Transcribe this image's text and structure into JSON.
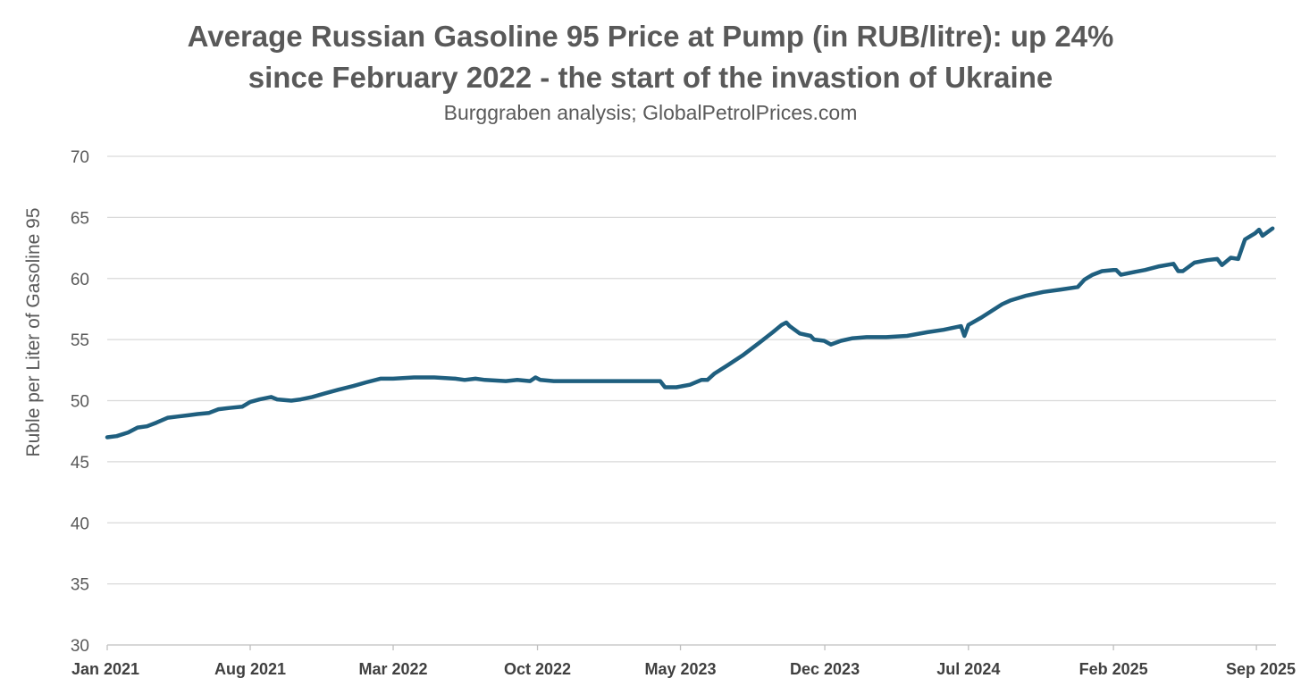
{
  "chart_data": {
    "type": "line",
    "title_line1": "Average Russian Gasoline 95 Price at Pump (in RUB/litre): up 24%",
    "title_line2": "since February 2022 - the start of the invastion of Ukraine",
    "subtitle": "Burggraben analysis; GlobalPetrolPrices.com",
    "xlabel": "",
    "ylabel": "Ruble per Liter of Gasoline 95",
    "ylim": [
      30,
      70
    ],
    "yticks": [
      30,
      35,
      40,
      45,
      50,
      55,
      60,
      65,
      70
    ],
    "xlim": [
      "2021-01-01",
      "2025-09-30"
    ],
    "xticks": [
      {
        "date": "2021-01-01",
        "label": "Jan 2021"
      },
      {
        "date": "2021-08-01",
        "label": "Aug 2021"
      },
      {
        "date": "2022-03-01",
        "label": "Mar 2022"
      },
      {
        "date": "2022-10-01",
        "label": "Oct 2022"
      },
      {
        "date": "2023-05-01",
        "label": "May 2023"
      },
      {
        "date": "2023-12-01",
        "label": "Dec 2023"
      },
      {
        "date": "2024-07-01",
        "label": "Jul 2024"
      },
      {
        "date": "2025-02-01",
        "label": "Feb 2025"
      },
      {
        "date": "2025-09-01",
        "label": "Sep 2025"
      }
    ],
    "grid": true,
    "line_color": "#1F5F7F",
    "series": [
      {
        "name": "",
        "points": [
          [
            "2021-01-01",
            47.0
          ],
          [
            "2021-01-15",
            47.1
          ],
          [
            "2021-02-01",
            47.4
          ],
          [
            "2021-02-15",
            47.8
          ],
          [
            "2021-03-01",
            47.9
          ],
          [
            "2021-03-15",
            48.2
          ],
          [
            "2021-04-01",
            48.6
          ],
          [
            "2021-04-15",
            48.7
          ],
          [
            "2021-05-01",
            48.8
          ],
          [
            "2021-05-15",
            48.9
          ],
          [
            "2021-06-01",
            49.0
          ],
          [
            "2021-06-15",
            49.3
          ],
          [
            "2021-07-01",
            49.4
          ],
          [
            "2021-07-20",
            49.5
          ],
          [
            "2021-08-01",
            49.9
          ],
          [
            "2021-08-15",
            50.1
          ],
          [
            "2021-09-01",
            50.3
          ],
          [
            "2021-09-10",
            50.1
          ],
          [
            "2021-10-01",
            50.0
          ],
          [
            "2021-10-15",
            50.1
          ],
          [
            "2021-11-01",
            50.3
          ],
          [
            "2021-11-20",
            50.6
          ],
          [
            "2021-12-10",
            50.9
          ],
          [
            "2022-01-01",
            51.2
          ],
          [
            "2022-01-20",
            51.5
          ],
          [
            "2022-02-10",
            51.8
          ],
          [
            "2022-03-01",
            51.8
          ],
          [
            "2022-04-01",
            51.9
          ],
          [
            "2022-05-01",
            51.9
          ],
          [
            "2022-06-01",
            51.8
          ],
          [
            "2022-06-15",
            51.7
          ],
          [
            "2022-07-01",
            51.8
          ],
          [
            "2022-07-15",
            51.7
          ],
          [
            "2022-08-15",
            51.6
          ],
          [
            "2022-09-01",
            51.7
          ],
          [
            "2022-09-20",
            51.6
          ],
          [
            "2022-09-28",
            51.9
          ],
          [
            "2022-10-05",
            51.7
          ],
          [
            "2022-10-25",
            51.6
          ],
          [
            "2022-12-01",
            51.6
          ],
          [
            "2023-02-01",
            51.6
          ],
          [
            "2023-04-01",
            51.6
          ],
          [
            "2023-04-08",
            51.1
          ],
          [
            "2023-04-25",
            51.1
          ],
          [
            "2023-05-15",
            51.3
          ],
          [
            "2023-06-01",
            51.7
          ],
          [
            "2023-06-10",
            51.7
          ],
          [
            "2023-06-20",
            52.2
          ],
          [
            "2023-07-10",
            52.9
          ],
          [
            "2023-08-01",
            53.7
          ],
          [
            "2023-08-25",
            54.7
          ],
          [
            "2023-09-15",
            55.6
          ],
          [
            "2023-09-28",
            56.2
          ],
          [
            "2023-10-05",
            56.4
          ],
          [
            "2023-10-10",
            56.1
          ],
          [
            "2023-10-25",
            55.5
          ],
          [
            "2023-11-10",
            55.3
          ],
          [
            "2023-11-15",
            55.0
          ],
          [
            "2023-11-30",
            54.9
          ],
          [
            "2023-12-10",
            54.6
          ],
          [
            "2023-12-25",
            54.9
          ],
          [
            "2024-01-10",
            55.1
          ],
          [
            "2024-02-01",
            55.2
          ],
          [
            "2024-03-01",
            55.2
          ],
          [
            "2024-04-01",
            55.3
          ],
          [
            "2024-05-01",
            55.6
          ],
          [
            "2024-05-25",
            55.8
          ],
          [
            "2024-06-20",
            56.1
          ],
          [
            "2024-06-25",
            55.3
          ],
          [
            "2024-07-01",
            56.2
          ],
          [
            "2024-07-20",
            56.8
          ],
          [
            "2024-08-20",
            57.9
          ],
          [
            "2024-09-01",
            58.2
          ],
          [
            "2024-09-25",
            58.6
          ],
          [
            "2024-10-20",
            58.9
          ],
          [
            "2024-11-15",
            59.1
          ],
          [
            "2024-12-10",
            59.3
          ],
          [
            "2024-12-20",
            59.9
          ],
          [
            "2025-01-01",
            60.3
          ],
          [
            "2025-01-15",
            60.6
          ],
          [
            "2025-02-01",
            60.7
          ],
          [
            "2025-02-05",
            60.7
          ],
          [
            "2025-02-12",
            60.3
          ],
          [
            "2025-03-01",
            60.5
          ],
          [
            "2025-03-20",
            60.7
          ],
          [
            "2025-04-10",
            61.0
          ],
          [
            "2025-05-01",
            61.2
          ],
          [
            "2025-05-08",
            60.6
          ],
          [
            "2025-05-15",
            60.6
          ],
          [
            "2025-06-01",
            61.3
          ],
          [
            "2025-06-20",
            61.5
          ],
          [
            "2025-07-05",
            61.6
          ],
          [
            "2025-07-12",
            61.1
          ],
          [
            "2025-07-25",
            61.7
          ],
          [
            "2025-08-05",
            61.6
          ],
          [
            "2025-08-15",
            63.2
          ],
          [
            "2025-08-30",
            63.7
          ],
          [
            "2025-09-05",
            64.0
          ],
          [
            "2025-09-10",
            63.5
          ],
          [
            "2025-09-25",
            64.1
          ]
        ]
      }
    ]
  }
}
